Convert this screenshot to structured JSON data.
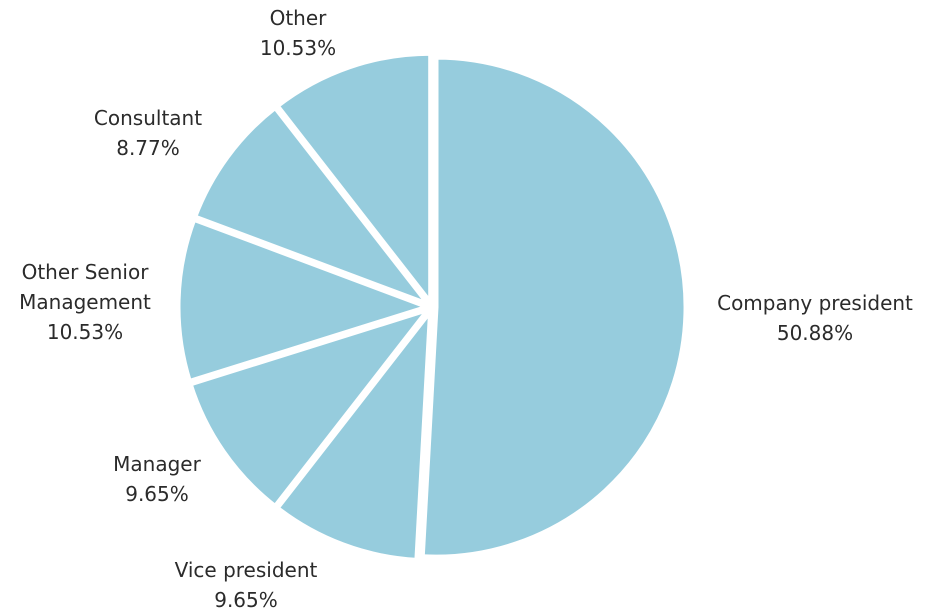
{
  "chart_data": {
    "type": "pie",
    "slices": [
      {
        "label_lines": [
          "Company president"
        ],
        "value_label": "50.88%",
        "value": 50.88
      },
      {
        "label_lines": [
          "Vice president"
        ],
        "value_label": "9.65%",
        "value": 9.65
      },
      {
        "label_lines": [
          "Manager"
        ],
        "value_label": "9.65%",
        "value": 9.65
      },
      {
        "label_lines": [
          "Other Senior",
          "Management"
        ],
        "value_label": "10.53%",
        "value": 10.53
      },
      {
        "label_lines": [
          "Consultant"
        ],
        "value_label": "8.77%",
        "value": 8.77
      },
      {
        "label_lines": [
          "Other"
        ],
        "value_label": "10.53%",
        "value": 10.53
      }
    ],
    "colors": {
      "slice": "#96CCDD",
      "edge": "#FFFFFF",
      "text": "#2B2B2B"
    },
    "legend": "none"
  }
}
